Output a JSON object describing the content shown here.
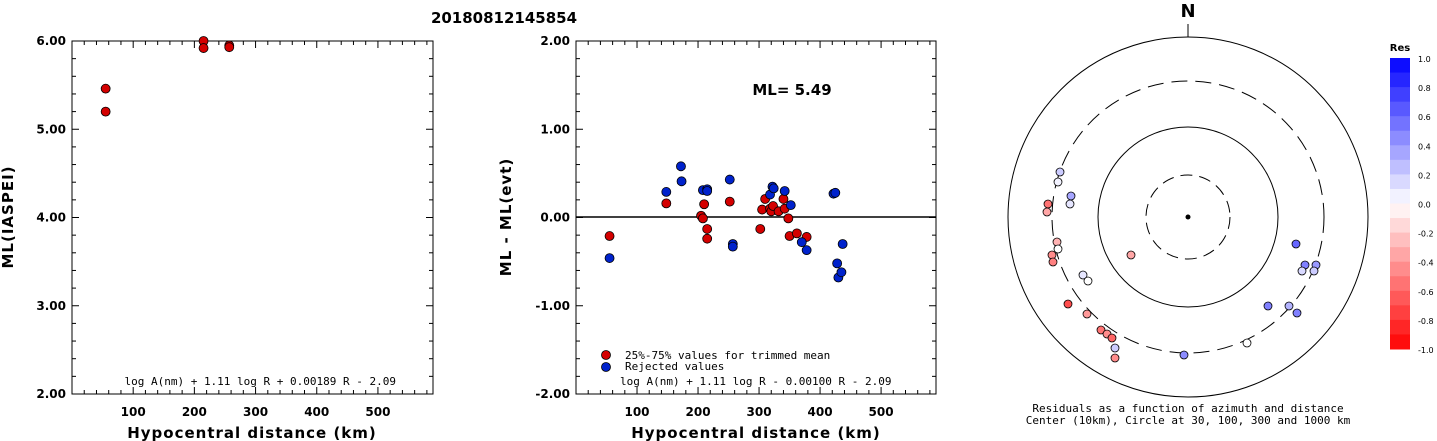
{
  "title": "20180812145854",
  "chart_data": [
    {
      "type": "scatter",
      "xlabel": "Hypocentral distance (km)",
      "ylabel": "ML(IASPEI)",
      "xlim": [
        0,
        590
      ],
      "ylim": [
        2.0,
        6.0
      ],
      "x_ticks": [
        "100",
        "200",
        "300",
        "400",
        "500"
      ],
      "y_ticks": [
        "2.00",
        "3.00",
        "4.00",
        "5.00",
        "6.00"
      ],
      "formula": "log A(nm) + 1.11 log R + 0.00189 R - 2.09",
      "series": [
        {
          "color": "#d40000",
          "points": [
            [
              55,
              5.46
            ],
            [
              55,
              5.2
            ],
            [
              215,
              6.0
            ],
            [
              215,
              5.92
            ],
            [
              257,
              5.95
            ],
            [
              257,
              5.93
            ]
          ]
        }
      ]
    },
    {
      "type": "scatter",
      "xlabel": "Hypocentral distance (km)",
      "ylabel": "ML - ML(evt)",
      "xlim": [
        0,
        590
      ],
      "ylim": [
        -2.0,
        2.0
      ],
      "x_ticks": [
        "100",
        "200",
        "300",
        "400",
        "500"
      ],
      "y_ticks": [
        "-2.00",
        "-1.00",
        "0.00",
        "1.00",
        "2.00"
      ],
      "annotation": "ML= 5.49",
      "formula": "log A(nm) + 1.11 log R - 0.00100 R - 2.09",
      "legend": [
        "25%-75% values for trimmed mean",
        "Rejected values"
      ],
      "series": [
        {
          "name": "25%-75% values for trimmed mean",
          "color": "#d40000",
          "points": [
            [
              55,
              -0.21
            ],
            [
              148,
              0.16
            ],
            [
              205,
              0.02
            ],
            [
              208,
              -0.01
            ],
            [
              210,
              0.15
            ],
            [
              215,
              -0.13
            ],
            [
              215,
              -0.24
            ],
            [
              252,
              0.18
            ],
            [
              302,
              -0.13
            ],
            [
              305,
              0.09
            ],
            [
              310,
              0.21
            ],
            [
              318,
              0.1
            ],
            [
              320,
              0.07
            ],
            [
              323,
              0.13
            ],
            [
              332,
              0.07
            ],
            [
              340,
              0.21
            ],
            [
              342,
              0.1
            ],
            [
              348,
              -0.01
            ],
            [
              350,
              -0.21
            ],
            [
              362,
              -0.18
            ],
            [
              378,
              -0.22
            ]
          ]
        },
        {
          "name": "Rejected values",
          "color": "#0022cc",
          "points": [
            [
              55,
              -0.46
            ],
            [
              148,
              0.29
            ],
            [
              172,
              0.58
            ],
            [
              173,
              0.41
            ],
            [
              208,
              0.31
            ],
            [
              215,
              0.32
            ],
            [
              215,
              0.3
            ],
            [
              252,
              0.43
            ],
            [
              257,
              -0.3
            ],
            [
              257,
              -0.33
            ],
            [
              318,
              0.26
            ],
            [
              322,
              0.35
            ],
            [
              324,
              0.33
            ],
            [
              342,
              0.3
            ],
            [
              352,
              0.14
            ],
            [
              370,
              -0.28
            ],
            [
              378,
              -0.37
            ],
            [
              422,
              0.27
            ],
            [
              425,
              0.28
            ],
            [
              428,
              -0.52
            ],
            [
              430,
              -0.68
            ],
            [
              435,
              -0.62
            ],
            [
              437,
              -0.3
            ]
          ]
        }
      ]
    }
  ],
  "polar": {
    "north_label": "N",
    "caption_line1": "Residuals as a function of azimuth and distance",
    "caption_line2": "Center (10km), Circle at 30, 100, 300 and 1000 km",
    "points": [
      [
        1060,
        172,
        0.2
      ],
      [
        1058,
        182,
        0.05
      ],
      [
        1071,
        196,
        0.35
      ],
      [
        1070,
        204,
        0.1
      ],
      [
        1048,
        204,
        -0.55
      ],
      [
        1047,
        212,
        -0.35
      ],
      [
        1057,
        242,
        -0.3
      ],
      [
        1058,
        249,
        0.0
      ],
      [
        1052,
        255,
        -0.45
      ],
      [
        1053,
        262,
        -0.5
      ],
      [
        1131,
        255,
        -0.35
      ],
      [
        1083,
        275,
        0.1
      ],
      [
        1088,
        281,
        0.0
      ],
      [
        1068,
        304,
        -0.7
      ],
      [
        1087,
        314,
        -0.4
      ],
      [
        1101,
        330,
        -0.55
      ],
      [
        1107,
        334,
        -0.45
      ],
      [
        1112,
        338,
        -0.6
      ],
      [
        1115,
        348,
        0.2
      ],
      [
        1115,
        358,
        -0.45
      ],
      [
        1184,
        355,
        0.45
      ],
      [
        1247,
        343,
        0.0
      ],
      [
        1296,
        244,
        0.6
      ],
      [
        1305,
        265,
        0.5
      ],
      [
        1302,
        271,
        0.15
      ],
      [
        1316,
        265,
        0.4
      ],
      [
        1314,
        271,
        0.2
      ],
      [
        1268,
        306,
        0.5
      ],
      [
        1289,
        306,
        0.3
      ],
      [
        1297,
        313,
        0.5
      ]
    ]
  },
  "colorbar": {
    "title": "Res",
    "labels": [
      "1.0",
      "0.8",
      "0.6",
      "0.4",
      "0.2",
      "0.0",
      "-0.2",
      "-0.4",
      "-0.6",
      "-0.8",
      "-1.0"
    ]
  }
}
